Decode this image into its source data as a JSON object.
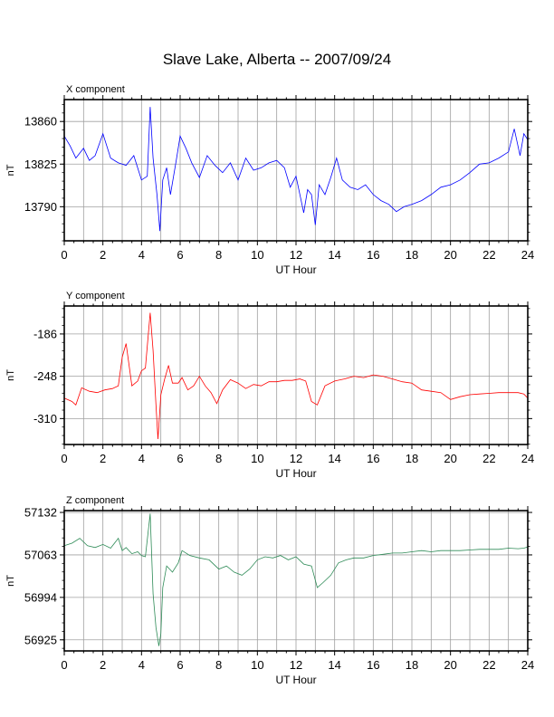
{
  "title": "Slave Lake, Alberta -- 2007/09/24",
  "colors": {
    "x": "#0000ff",
    "y": "#ff0000",
    "z": "#2e8b57",
    "grid": "#a0a0a0",
    "frame": "#000000"
  },
  "chart_data": [
    {
      "type": "line",
      "title": "X component",
      "xlabel": "UT Hour",
      "ylabel": "nT",
      "xlim": [
        0,
        24
      ],
      "ylim": [
        13762,
        13878
      ],
      "xticks": [
        0,
        2,
        4,
        6,
        8,
        10,
        12,
        14,
        16,
        18,
        20,
        22,
        24
      ],
      "yticks": [
        13790,
        13825,
        13860
      ],
      "grid": true,
      "series": [
        {
          "color": "#0000ff",
          "x": [
            0,
            0.3,
            0.6,
            1,
            1.3,
            1.6,
            2,
            2.4,
            2.8,
            3.2,
            3.6,
            4.0,
            4.3,
            4.45,
            4.6,
            4.8,
            4.95,
            5.1,
            5.3,
            5.5,
            5.8,
            6.0,
            6.3,
            6.6,
            7.0,
            7.4,
            7.8,
            8.2,
            8.6,
            9.0,
            9.4,
            9.8,
            10.2,
            10.6,
            11.0,
            11.4,
            11.7,
            12.0,
            12.2,
            12.4,
            12.6,
            12.8,
            13.0,
            13.2,
            13.5,
            13.8,
            14.1,
            14.4,
            14.8,
            15.2,
            15.6,
            16.0,
            16.4,
            16.8,
            17.2,
            17.6,
            18.0,
            18.5,
            19.0,
            19.5,
            20.0,
            20.5,
            21.0,
            21.5,
            22.0,
            22.5,
            23.0,
            23.3,
            23.6,
            23.8,
            24
          ],
          "y": [
            13848,
            13840,
            13830,
            13838,
            13828,
            13832,
            13850,
            13830,
            13826,
            13824,
            13832,
            13812,
            13815,
            13872,
            13830,
            13800,
            13770,
            13812,
            13822,
            13800,
            13828,
            13848,
            13838,
            13826,
            13814,
            13832,
            13824,
            13818,
            13826,
            13812,
            13830,
            13820,
            13822,
            13826,
            13828,
            13822,
            13806,
            13815,
            13800,
            13785,
            13804,
            13800,
            13775,
            13808,
            13800,
            13814,
            13830,
            13812,
            13806,
            13804,
            13808,
            13800,
            13795,
            13792,
            13786,
            13790,
            13792,
            13795,
            13800,
            13806,
            13808,
            13812,
            13818,
            13825,
            13826,
            13830,
            13835,
            13854,
            13832,
            13850,
            13845
          ]
        }
      ]
    },
    {
      "type": "line",
      "title": "Y component",
      "xlabel": "UT Hour",
      "ylabel": "nT",
      "xlim": [
        0,
        24
      ],
      "ylim": [
        -348,
        -145
      ],
      "xticks": [
        0,
        2,
        4,
        6,
        8,
        10,
        12,
        14,
        16,
        18,
        20,
        22,
        24
      ],
      "yticks": [
        -186,
        -248,
        -310
      ],
      "grid": true,
      "series": [
        {
          "color": "#ff0000",
          "x": [
            0,
            0.4,
            0.6,
            0.9,
            1.3,
            1.7,
            2.1,
            2.5,
            2.8,
            3.0,
            3.2,
            3.5,
            3.8,
            4.0,
            4.2,
            4.45,
            4.6,
            4.75,
            4.85,
            5.0,
            5.2,
            5.4,
            5.6,
            5.9,
            6.1,
            6.4,
            6.7,
            7.0,
            7.3,
            7.6,
            7.9,
            8.2,
            8.6,
            9.0,
            9.4,
            9.8,
            10.2,
            10.6,
            11.0,
            11.4,
            11.8,
            12.2,
            12.5,
            12.8,
            13.1,
            13.5,
            14.0,
            14.5,
            15.0,
            15.5,
            16.0,
            16.5,
            17.0,
            17.5,
            18.0,
            18.5,
            19.0,
            19.5,
            20.0,
            20.5,
            21.0,
            21.5,
            22.0,
            22.5,
            23.0,
            23.5,
            23.8,
            24
          ],
          "y": [
            -280,
            -285,
            -290,
            -265,
            -270,
            -272,
            -268,
            -266,
            -262,
            -220,
            -200,
            -262,
            -255,
            -240,
            -236,
            -155,
            -210,
            -290,
            -340,
            -275,
            -252,
            -232,
            -258,
            -258,
            -250,
            -268,
            -262,
            -248,
            -262,
            -272,
            -288,
            -268,
            -253,
            -258,
            -266,
            -260,
            -262,
            -256,
            -256,
            -254,
            -254,
            -252,
            -255,
            -285,
            -290,
            -262,
            -255,
            -252,
            -248,
            -250,
            -246,
            -248,
            -252,
            -256,
            -258,
            -268,
            -270,
            -272,
            -282,
            -278,
            -275,
            -274,
            -273,
            -272,
            -272,
            -272,
            -274,
            -280
          ]
        }
      ]
    },
    {
      "type": "line",
      "title": "Z component",
      "xlabel": "UT Hour",
      "ylabel": "nT",
      "xlim": [
        0,
        24
      ],
      "ylim": [
        56907,
        57135
      ],
      "xticks": [
        0,
        2,
        4,
        6,
        8,
        10,
        12,
        14,
        16,
        18,
        20,
        22,
        24
      ],
      "yticks": [
        56925,
        56994,
        57063,
        57132
      ],
      "grid": true,
      "series": [
        {
          "color": "#2e8b57",
          "x": [
            0,
            0.4,
            0.8,
            1.2,
            1.6,
            2.0,
            2.4,
            2.8,
            3.0,
            3.2,
            3.5,
            3.8,
            4.0,
            4.2,
            4.45,
            4.6,
            4.75,
            4.9,
            5.0,
            5.1,
            5.3,
            5.6,
            5.9,
            6.1,
            6.5,
            7.0,
            7.5,
            8.0,
            8.4,
            8.8,
            9.2,
            9.6,
            10.0,
            10.4,
            10.8,
            11.2,
            11.6,
            12.0,
            12.4,
            12.8,
            13.1,
            13.4,
            13.8,
            14.2,
            14.6,
            15.0,
            15.5,
            16.0,
            16.5,
            17.0,
            17.5,
            18.0,
            18.5,
            19.0,
            19.5,
            20.0,
            20.5,
            21.0,
            21.5,
            22.0,
            22.5,
            23.0,
            23.5,
            23.8,
            24
          ],
          "y": [
            57078,
            57082,
            57090,
            57078,
            57075,
            57080,
            57074,
            57090,
            57070,
            57075,
            57065,
            57068,
            57062,
            57060,
            57130,
            57000,
            56945,
            56915,
            56935,
            57010,
            57045,
            57035,
            57050,
            57070,
            57062,
            57058,
            57055,
            57040,
            57045,
            57035,
            57030,
            57040,
            57055,
            57060,
            57058,
            57062,
            57055,
            57060,
            57048,
            57045,
            57010,
            57018,
            57030,
            57050,
            57055,
            57058,
            57058,
            57062,
            57064,
            57066,
            57066,
            57068,
            57070,
            57068,
            57070,
            57070,
            57070,
            57071,
            57072,
            57072,
            57072,
            57074,
            57073,
            57074,
            57076
          ]
        }
      ]
    }
  ]
}
